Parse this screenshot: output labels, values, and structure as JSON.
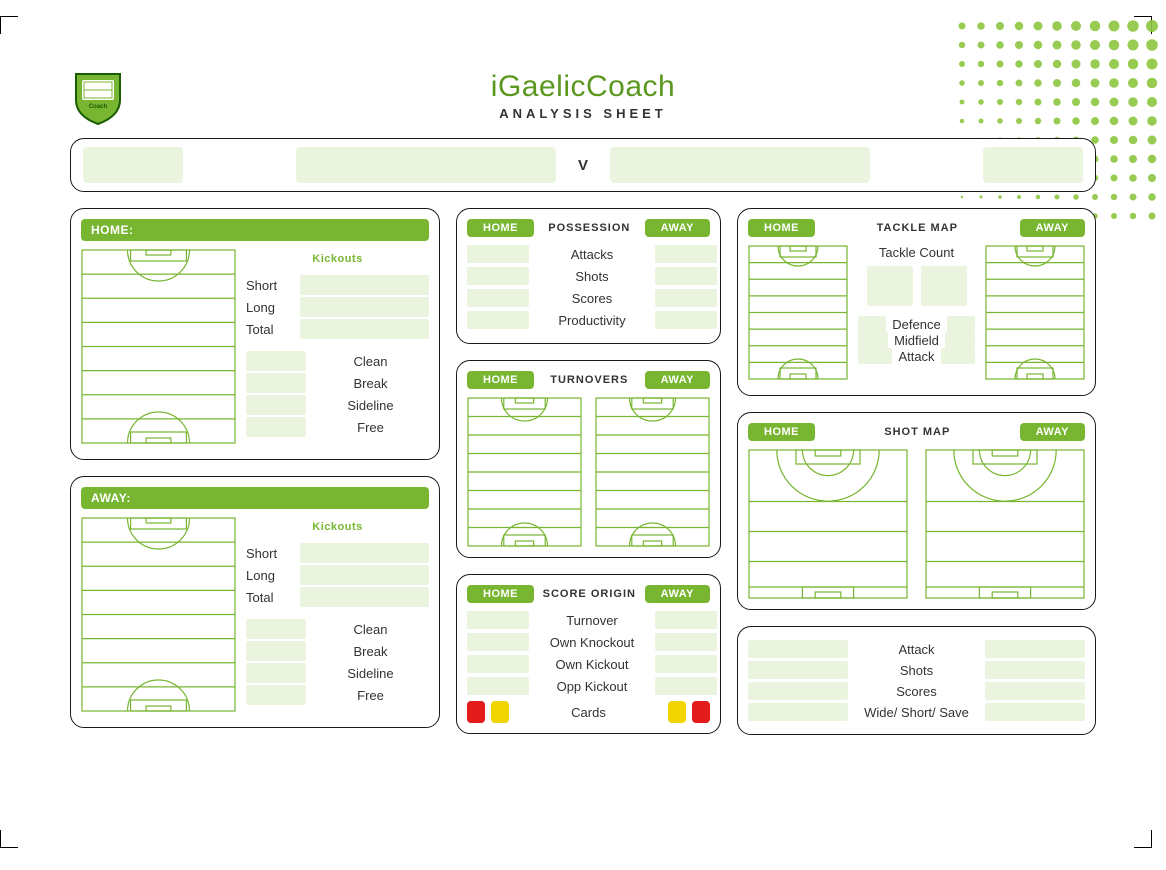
{
  "brand": "iGaelicCoach",
  "subtitle": "ANALYSIS SHEET",
  "vs_label": "V",
  "kickouts_heading": "Kickouts",
  "home_label": "HOME",
  "away_label": "AWAY",
  "home_band": "HOME:",
  "away_band": "AWAY:",
  "kickout_rows_top": [
    "Short",
    "Long",
    "Total"
  ],
  "kickout_rows_bottom": [
    "Clean",
    "Break",
    "Sideline",
    "Free"
  ],
  "possession": {
    "title": "POSSESSION",
    "rows": [
      "Attacks",
      "Shots",
      "Scores",
      "Productivity"
    ]
  },
  "turnovers": {
    "title": "TURNOVERS"
  },
  "score_origin": {
    "title": "SCORE ORIGIN",
    "rows": [
      "Turnover",
      "Own Knockout",
      "Own Kickout",
      "Opp Kickout"
    ],
    "cards_label": "Cards"
  },
  "tackle_map": {
    "title": "TACKLE MAP",
    "count_label": "Tackle Count",
    "legend": [
      "Defence",
      "Midfield",
      "Attack"
    ]
  },
  "shot_map": {
    "title": "SHOT  MAP"
  },
  "summary_rows": [
    "Attack",
    "Shots",
    "Scores",
    "Wide/ Short/ Save"
  ],
  "colors": {
    "green": "#78b531",
    "green_dk": "#5a9820",
    "pale": "#eaf4de",
    "red": "#e31b1b",
    "yellow": "#f2d400"
  }
}
